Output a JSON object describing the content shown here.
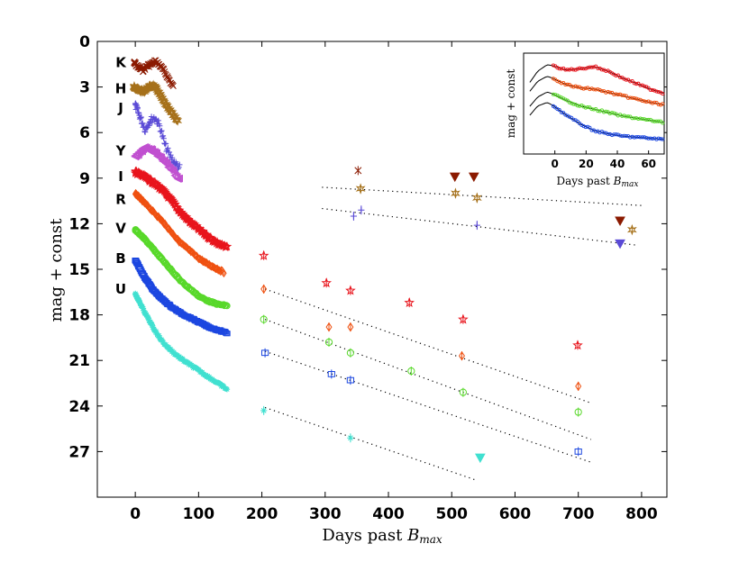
{
  "chart_data": {
    "type": "scatter",
    "xlabel": "Days past B_max",
    "xlabel_main": "Days past ",
    "xlabel_sub": "max",
    "xlabel_sym": "B",
    "ylabel": "mag + const",
    "xlim": [
      -60,
      840
    ],
    "ylim": [
      30,
      0
    ],
    "xticks": [
      0,
      100,
      200,
      300,
      400,
      500,
      600,
      700,
      800
    ],
    "yticks": [
      0,
      3,
      6,
      9,
      12,
      15,
      18,
      21,
      24,
      27
    ],
    "band_labels": [
      {
        "text": "K",
        "y": 1.4
      },
      {
        "text": "H",
        "y": 3.1
      },
      {
        "text": "J",
        "y": 4.4
      },
      {
        "text": "Y",
        "y": 7.2
      },
      {
        "text": "I",
        "y": 8.9
      },
      {
        "text": "R",
        "y": 10.4
      },
      {
        "text": "V",
        "y": 12.3
      },
      {
        "text": "B",
        "y": 14.3
      },
      {
        "text": "U",
        "y": 16.3
      }
    ],
    "series": [
      {
        "name": "K",
        "color": "#8b1a00",
        "marker": "x",
        "early": {
          "start": -2,
          "end": 60,
          "mags": [
            1.4,
            1.7,
            1.9,
            1.6,
            1.5,
            1.3,
            1.6,
            2.0,
            2.5,
            3.0
          ],
          "noise": 0.25
        },
        "late": [
          {
            "x": 352,
            "y": 8.5
          }
        ],
        "upper_limits": [
          {
            "x": 505,
            "y": 8.9
          },
          {
            "x": 535,
            "y": 8.9
          },
          {
            "x": 766,
            "y": 11.8
          }
        ]
      },
      {
        "name": "H",
        "color": "#a6711a",
        "marker": "hexagram",
        "early": {
          "start": -2,
          "end": 67,
          "mags": [
            3.0,
            3.2,
            3.3,
            3.0,
            2.9,
            3.3,
            3.9,
            4.4,
            4.8,
            5.2
          ],
          "noise": 0.15
        },
        "late": [
          {
            "x": 356,
            "y": 9.7
          },
          {
            "x": 506,
            "y": 10.0
          },
          {
            "x": 540,
            "y": 10.3
          },
          {
            "x": 785,
            "y": 12.4
          }
        ],
        "fit": {
          "x1": 295,
          "y1": 9.6,
          "x2": 800,
          "y2": 10.8
        }
      },
      {
        "name": "J",
        "color": "#5a4ad6",
        "marker": "plus",
        "early": {
          "start": 0,
          "end": 70,
          "mags": [
            4.2,
            5.0,
            5.8,
            5.2,
            5.0,
            5.6,
            6.8,
            7.5,
            8.0,
            8.3
          ],
          "noise": 0.45
        },
        "late": [
          {
            "x": 345,
            "y": 11.5
          },
          {
            "x": 357,
            "y": 11.1
          },
          {
            "x": 540,
            "y": 12.1
          }
        ],
        "fit": {
          "x1": 295,
          "y1": 11.0,
          "x2": 790,
          "y2": 13.4
        },
        "upper_limits": [
          {
            "x": 766,
            "y": 13.3
          }
        ]
      },
      {
        "name": "Y",
        "color": "#c050d0",
        "marker": "triangle-left",
        "early": {
          "start": 0,
          "end": 70,
          "mags": [
            7.6,
            7.3,
            7.0,
            7.1,
            7.3,
            7.6,
            7.9,
            8.3,
            8.7,
            9.1
          ],
          "noise": 0.2
        }
      },
      {
        "name": "I",
        "color": "#e8141c",
        "marker": "star",
        "early": {
          "start": 0,
          "end": 145,
          "mags": [
            8.6,
            8.9,
            9.3,
            9.8,
            10.5,
            11.3,
            11.9,
            12.4,
            12.9,
            13.3,
            13.6
          ],
          "noise": 0.2
        },
        "late": [
          {
            "x": 203,
            "y": 14.1
          },
          {
            "x": 302,
            "y": 15.9
          },
          {
            "x": 340,
            "y": 16.4
          },
          {
            "x": 433,
            "y": 17.2
          },
          {
            "x": 518,
            "y": 18.3
          },
          {
            "x": 699,
            "y": 20.0
          }
        ]
      },
      {
        "name": "R",
        "color": "#ef5010",
        "marker": "diamond",
        "early": {
          "start": 0,
          "end": 140,
          "mags": [
            10.0,
            10.6,
            11.2,
            11.8,
            12.5,
            13.2,
            13.7,
            14.2,
            14.6,
            14.9,
            15.2
          ],
          "noise": 0.12
        },
        "late": [
          {
            "x": 203,
            "y": 16.3
          },
          {
            "x": 306,
            "y": 18.8
          },
          {
            "x": 340,
            "y": 18.8
          },
          {
            "x": 516,
            "y": 20.7
          },
          {
            "x": 700,
            "y": 22.7
          }
        ],
        "fit": {
          "x1": 205,
          "y1": 16.3,
          "x2": 720,
          "y2": 23.8
        }
      },
      {
        "name": "V",
        "color": "#58d82a",
        "marker": "circle",
        "early": {
          "start": 0,
          "end": 145,
          "mags": [
            12.4,
            13.0,
            13.7,
            14.4,
            15.1,
            15.8,
            16.3,
            16.8,
            17.1,
            17.3,
            17.4
          ],
          "noise": 0.1
        },
        "late": [
          {
            "x": 203,
            "y": 18.3
          },
          {
            "x": 306,
            "y": 19.8
          },
          {
            "x": 340,
            "y": 20.5
          },
          {
            "x": 436,
            "y": 21.7
          },
          {
            "x": 518,
            "y": 23.1
          },
          {
            "x": 700,
            "y": 24.4
          }
        ],
        "fit": {
          "x1": 205,
          "y1": 18.3,
          "x2": 720,
          "y2": 26.2
        }
      },
      {
        "name": "B",
        "color": "#1c47e0",
        "marker": "square",
        "early": {
          "start": 0,
          "end": 145,
          "mags": [
            14.4,
            15.5,
            16.4,
            17.0,
            17.5,
            17.9,
            18.2,
            18.5,
            18.8,
            19.0,
            19.2
          ],
          "noise": 0.1
        },
        "late": [
          {
            "x": 205,
            "y": 20.5
          },
          {
            "x": 310,
            "y": 21.9
          },
          {
            "x": 340,
            "y": 22.3
          },
          {
            "x": 700,
            "y": 27.0
          }
        ],
        "fit": {
          "x1": 205,
          "y1": 20.4,
          "x2": 720,
          "y2": 27.7
        }
      },
      {
        "name": "U",
        "color": "#40e0d0",
        "marker": "asterisk",
        "early": {
          "start": 0,
          "end": 145,
          "mags": [
            16.6,
            17.8,
            18.9,
            19.8,
            20.4,
            20.9,
            21.3,
            21.7,
            22.1,
            22.5,
            22.9
          ],
          "noise": 0.15
        },
        "late": [
          {
            "x": 203,
            "y": 24.3
          },
          {
            "x": 340,
            "y": 26.1
          }
        ],
        "fit": {
          "x1": 205,
          "y1": 24.1,
          "x2": 540,
          "y2": 28.9
        },
        "upper_limits": [
          {
            "x": 545,
            "y": 27.4
          }
        ]
      }
    ],
    "inset": {
      "xlabel": "Days past B_max",
      "xlabel_main": "Days past ",
      "xlabel_sym": "B",
      "xlabel_sub": "max",
      "ylabel": "mag + const",
      "xlim": [
        -20,
        70
      ],
      "ylim": [
        9,
        0
      ],
      "xticks": [
        0,
        20,
        40,
        60
      ],
      "series": [
        {
          "name": "I",
          "color": "#e8141c",
          "mags": [
            1.6,
            0.9,
            1.1,
            1.5,
            1.4,
            1.2,
            1.6,
            2.2,
            2.7,
            3.2,
            3.6
          ]
        },
        {
          "name": "R",
          "color": "#ef5010",
          "mags": [
            2.3,
            1.8,
            2.2,
            2.8,
            3.1,
            3.2,
            3.5,
            3.8,
            4.1,
            4.4,
            4.6
          ]
        },
        {
          "name": "V",
          "color": "#58d82a",
          "mags": [
            3.6,
            3.2,
            3.6,
            4.2,
            4.7,
            5.0,
            5.3,
            5.6,
            5.8,
            6.0,
            6.2
          ]
        },
        {
          "name": "B",
          "color": "#1c47e0",
          "mags": [
            4.4,
            4.0,
            4.6,
            5.5,
            6.3,
            6.9,
            7.2,
            7.4,
            7.5,
            7.6,
            7.7
          ]
        }
      ]
    }
  }
}
